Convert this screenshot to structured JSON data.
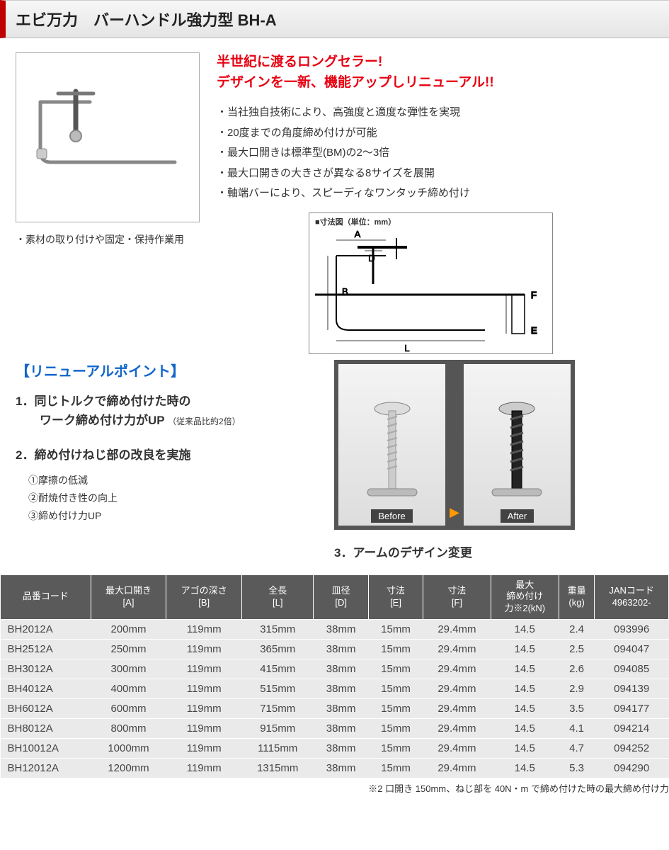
{
  "header": {
    "title": "エビ万力　バーハンドル強力型 BH-A"
  },
  "headline": {
    "line1": "半世紀に渡るロングセラー!",
    "line2": "デザインを一新、機能アップしリニューアル!!"
  },
  "features": [
    "・当社独自技術により、高強度と適度な弾性を実現",
    "・20度までの角度締め付けが可能",
    "・最大口開きは標準型(BM)の2～3倍",
    "・最大口開きの大きさが異なる8サイズを展開",
    "・軸端バーにより、スピーディなワンタッチ締め付け"
  ],
  "usage_note": "・素材の取り付けや固定・保持作業用",
  "dim_diagram_title": "■寸法図（単位：mm）",
  "dim_labels": {
    "A": "A",
    "B": "B",
    "D": "D",
    "E": "E",
    "F": "F",
    "L": "L"
  },
  "renewal": {
    "heading": "【リニューアルポイント】",
    "p1_title": "1．同じトルクで締め付けた時の",
    "p1_title2": "　　ワーク締め付け力がUP",
    "p1_sub": "（従来品比約2倍）",
    "p2_title": "2．締め付けねじ部の改良を実施",
    "sub1": "①摩擦の低減",
    "sub2": "②耐焼付き性の向上",
    "sub3": "③締め付け力UP",
    "p3_title": "3．アームのデザイン変更"
  },
  "before_after": {
    "before": "Before",
    "after": "After"
  },
  "table": {
    "headers": [
      "品番コード",
      "最大口開き\n[A]",
      "アゴの深さ\n[B]",
      "全長\n[L]",
      "皿径\n[D]",
      "寸法\n[E]",
      "寸法\n[F]",
      "最大\n締め付け\n力※2(kN)",
      "重量\n(kg)",
      "JANコード\n4963202-"
    ],
    "rows": [
      [
        "BH2012A",
        "200mm",
        "119mm",
        "315mm",
        "38mm",
        "15mm",
        "29.4mm",
        "14.5",
        "2.4",
        "093996"
      ],
      [
        "BH2512A",
        "250mm",
        "119mm",
        "365mm",
        "38mm",
        "15mm",
        "29.4mm",
        "14.5",
        "2.5",
        "094047"
      ],
      [
        "BH3012A",
        "300mm",
        "119mm",
        "415mm",
        "38mm",
        "15mm",
        "29.4mm",
        "14.5",
        "2.6",
        "094085"
      ],
      [
        "BH4012A",
        "400mm",
        "119mm",
        "515mm",
        "38mm",
        "15mm",
        "29.4mm",
        "14.5",
        "2.9",
        "094139"
      ],
      [
        "BH6012A",
        "600mm",
        "119mm",
        "715mm",
        "38mm",
        "15mm",
        "29.4mm",
        "14.5",
        "3.5",
        "094177"
      ],
      [
        "BH8012A",
        "800mm",
        "119mm",
        "915mm",
        "38mm",
        "15mm",
        "29.4mm",
        "14.5",
        "4.1",
        "094214"
      ],
      [
        "BH10012A",
        "1000mm",
        "119mm",
        "1115mm",
        "38mm",
        "15mm",
        "29.4mm",
        "14.5",
        "4.7",
        "094252"
      ],
      [
        "BH12012A",
        "1200mm",
        "119mm",
        "1315mm",
        "38mm",
        "15mm",
        "29.4mm",
        "14.5",
        "5.3",
        "094290"
      ]
    ]
  },
  "footnote": "※2 口開き 150mm、ねじ部を 40N・m で締め付けた時の最大締め付け力",
  "colors": {
    "accent_red": "#c00000",
    "headline_red": "#e60012",
    "section_blue": "#1166cc",
    "table_header_bg": "#5a5a5a",
    "ba_bg": "#555555",
    "arrow_orange": "#ff9a00"
  }
}
